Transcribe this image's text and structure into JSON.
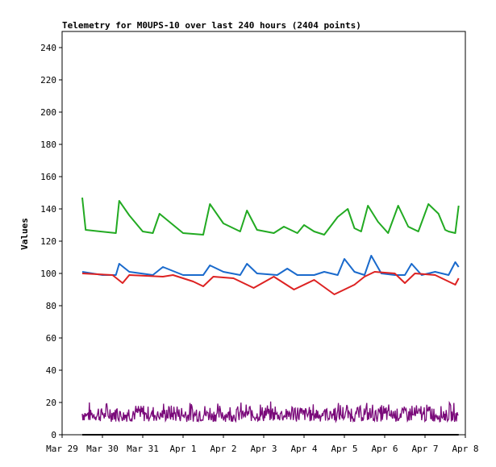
{
  "chart_data": {
    "type": "line",
    "title": "Telemetry for M0UPS-10 over last 240 hours (2404 points)",
    "xlabel": "",
    "ylabel": "Values",
    "xlim": [
      "Mar 29",
      "Apr 8"
    ],
    "ylim": [
      0,
      250
    ],
    "x_tick_labels": [
      "Mar 29",
      "Mar 30",
      "Mar 31",
      "Apr 1",
      "Apr 2",
      "Apr 3",
      "Apr 4",
      "Apr 5",
      "Apr 6",
      "Apr 7",
      "Apr 8"
    ],
    "y_ticks": [
      0,
      20,
      40,
      60,
      80,
      100,
      120,
      140,
      160,
      180,
      200,
      220,
      240
    ],
    "grid": false,
    "legend": "none",
    "series": [
      {
        "color": "#22aa22",
        "x": [
          "Mar 29 12:00",
          "Mar 29 14:00",
          "Mar 30 08:00",
          "Mar 30 10:00",
          "Mar 30 16:00",
          "Mar 31 00:00",
          "Mar 31 06:00",
          "Mar 31 10:00",
          "Apr 1 00:00",
          "Apr 1 12:00",
          "Apr 1 16:00",
          "Apr 2 00:00",
          "Apr 2 10:00",
          "Apr 2 14:00",
          "Apr 2 20:00",
          "Apr 3 06:00",
          "Apr 3 12:00",
          "Apr 3 20:00",
          "Apr 4 00:00",
          "Apr 4 06:00",
          "Apr 4 12:00",
          "Apr 4 20:00",
          "Apr 5 02:00",
          "Apr 5 06:00",
          "Apr 5 10:00",
          "Apr 5 14:00",
          "Apr 5 20:00",
          "Apr 6 02:00",
          "Apr 6 08:00",
          "Apr 6 14:00",
          "Apr 6 20:00",
          "Apr 7 02:00",
          "Apr 7 08:00",
          "Apr 7 12:00",
          "Apr 7 14:00",
          "Apr 7 18:00",
          "Apr 7 20:00"
        ],
        "values": [
          147,
          127,
          125,
          145,
          136,
          126,
          125,
          137,
          125,
          124,
          143,
          131,
          126,
          139,
          127,
          125,
          129,
          125,
          130,
          126,
          124,
          135,
          140,
          128,
          126,
          142,
          132,
          125,
          142,
          129,
          126,
          143,
          137,
          127,
          126,
          125,
          142
        ]
      },
      {
        "color": "#1a6acc",
        "x": [
          "Mar 29 12:00",
          "Mar 30 00:00",
          "Mar 30 08:00",
          "Mar 30 10:00",
          "Mar 30 16:00",
          "Mar 31 06:00",
          "Mar 31 12:00",
          "Apr 1 00:00",
          "Apr 1 12:00",
          "Apr 1 16:00",
          "Apr 2 00:00",
          "Apr 2 10:00",
          "Apr 2 14:00",
          "Apr 2 20:00",
          "Apr 3 08:00",
          "Apr 3 14:00",
          "Apr 3 20:00",
          "Apr 4 06:00",
          "Apr 4 12:00",
          "Apr 4 20:00",
          "Apr 5 00:00",
          "Apr 5 06:00",
          "Apr 5 12:00",
          "Apr 5 16:00",
          "Apr 5 22:00",
          "Apr 6 06:00",
          "Apr 6 12:00",
          "Apr 6 16:00",
          "Apr 6 22:00",
          "Apr 7 06:00",
          "Apr 7 14:00",
          "Apr 7 18:00",
          "Apr 7 20:00"
        ],
        "values": [
          101,
          99,
          99,
          106,
          101,
          99,
          104,
          99,
          99,
          105,
          101,
          99,
          106,
          100,
          99,
          103,
          99,
          99,
          101,
          99,
          109,
          101,
          99,
          111,
          100,
          99,
          99,
          106,
          99,
          101,
          99,
          107,
          104
        ]
      },
      {
        "color": "#dd2222",
        "x": [
          "Mar 29 12:00",
          "Mar 30 06:00",
          "Mar 30 12:00",
          "Mar 30 16:00",
          "Mar 31 12:00",
          "Mar 31 18:00",
          "Apr 1 06:00",
          "Apr 1 12:00",
          "Apr 1 18:00",
          "Apr 2 06:00",
          "Apr 2 18:00",
          "Apr 3 06:00",
          "Apr 3 18:00",
          "Apr 4 06:00",
          "Apr 4 18:00",
          "Apr 5 06:00",
          "Apr 5 12:00",
          "Apr 5 18:00",
          "Apr 6 06:00",
          "Apr 6 12:00",
          "Apr 6 18:00",
          "Apr 7 06:00",
          "Apr 7 12:00",
          "Apr 7 18:00",
          "Apr 7 20:00"
        ],
        "values": [
          100,
          99,
          94,
          99,
          98,
          99,
          95,
          92,
          98,
          97,
          91,
          98,
          90,
          96,
          87,
          93,
          98,
          101,
          100,
          94,
          100,
          99,
          96,
          93,
          97
        ]
      },
      {
        "color": "#7a0a7a",
        "x": [
          "Mar 29 12:00",
          "Apr 7 20:00"
        ],
        "values": [
          6,
          25
        ],
        "note_range": "noise band between 6 and 25"
      },
      {
        "color": "#000000",
        "x": [
          "Mar 29 12:00",
          "Apr 7 20:00"
        ],
        "values": [
          0,
          0
        ]
      }
    ]
  }
}
